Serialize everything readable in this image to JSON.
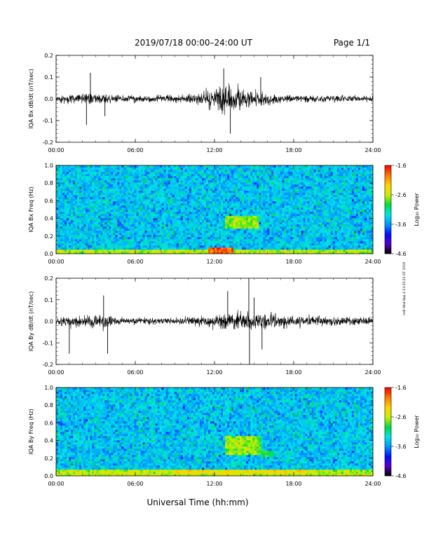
{
  "header": {
    "title": "2019/07/18  00:00–24:00 UT",
    "page": "Page 1/1"
  },
  "xaxis": {
    "label": "Universal Time (hh:mm)",
    "range_hours": [
      0,
      24
    ],
    "ticks": [
      {
        "h": 0,
        "label": "00:00"
      },
      {
        "h": 6,
        "label": "06:00"
      },
      {
        "h": 12,
        "label": "12:00"
      },
      {
        "h": 18,
        "label": "18:00"
      },
      {
        "h": 24,
        "label": "24:00"
      }
    ]
  },
  "side_note": "mdl fdsd 8pp 4 13:15:21 OT 2019",
  "colorscale": {
    "label": "Log₁₀ Power",
    "ticks": [
      "-1.6",
      "-2.6",
      "-3.6",
      "-4.6"
    ],
    "range": [
      -4.6,
      -1.6
    ],
    "colors": [
      "#000000",
      "#5a00c8",
      "#0010ff",
      "#0096ff",
      "#00e6e6",
      "#00dc3c",
      "#c8f000",
      "#ffd200",
      "#ff7800",
      "#ff0000"
    ]
  },
  "chart_data": [
    {
      "type": "line",
      "ylabel": "IQA Bx dB/dt (nT/sec)",
      "ylim": [
        -0.2,
        0.2
      ],
      "yticks": [
        "-0.2",
        "-0.1",
        "0.0",
        "0.1",
        "0.2"
      ],
      "ytick_values": [
        -0.2,
        -0.1,
        0.0,
        0.1,
        0.2
      ],
      "baseline": 0.0,
      "noise": 0.012,
      "envelope": [
        {
          "h": 0,
          "amp": 0.015
        },
        {
          "h": 2,
          "amp": 0.02
        },
        {
          "h": 2.5,
          "amp": 0.045
        },
        {
          "h": 3,
          "amp": 0.02
        },
        {
          "h": 6,
          "amp": 0.015
        },
        {
          "h": 9,
          "amp": 0.018
        },
        {
          "h": 11,
          "amp": 0.035
        },
        {
          "h": 12,
          "amp": 0.08
        },
        {
          "h": 13,
          "amp": 0.11
        },
        {
          "h": 14,
          "amp": 0.07
        },
        {
          "h": 15.5,
          "amp": 0.05
        },
        {
          "h": 17,
          "amp": 0.022
        },
        {
          "h": 20,
          "amp": 0.015
        },
        {
          "h": 24,
          "amp": 0.012
        }
      ],
      "spikes": [
        {
          "h": 2.3,
          "v": -0.12
        },
        {
          "h": 2.6,
          "v": 0.12
        },
        {
          "h": 3.7,
          "v": -0.08
        },
        {
          "h": 12.7,
          "v": 0.14
        },
        {
          "h": 13.2,
          "v": -0.16
        },
        {
          "h": 15.5,
          "v": 0.1
        }
      ]
    },
    {
      "type": "heatmap",
      "ylabel": "IQA Bx Freq (Hz)",
      "ylim": [
        0,
        1.0
      ],
      "yticks": [
        "0.0",
        "0.2",
        "0.4",
        "0.6",
        "0.8",
        "1.0"
      ],
      "ytick_values": [
        0,
        0.2,
        0.4,
        0.6,
        0.8,
        1.0
      ],
      "background_power": -3.4,
      "low_freq_band": {
        "fmax": 0.05,
        "power": -2.6
      },
      "features": [
        {
          "h0": 12.8,
          "h1": 15.3,
          "f0": 0.28,
          "f1": 0.42,
          "power": -2.7
        },
        {
          "h0": 11.5,
          "h1": 13.5,
          "f0": 0.0,
          "f1": 0.06,
          "power": -1.9
        }
      ]
    },
    {
      "type": "line",
      "ylabel": "IQA By dB/dt (nT/sec)",
      "ylim": [
        -0.2,
        0.2
      ],
      "yticks": [
        "-0.2",
        "-0.1",
        "0.0",
        "0.1",
        "0.2"
      ],
      "ytick_values": [
        -0.2,
        -0.1,
        0.0,
        0.1,
        0.2
      ],
      "baseline": 0.0,
      "noise": 0.012,
      "envelope": [
        {
          "h": 0,
          "amp": 0.018
        },
        {
          "h": 1.5,
          "amp": 0.035
        },
        {
          "h": 2.5,
          "amp": 0.04
        },
        {
          "h": 3.5,
          "amp": 0.05
        },
        {
          "h": 5,
          "amp": 0.015
        },
        {
          "h": 9,
          "amp": 0.016
        },
        {
          "h": 11,
          "amp": 0.03
        },
        {
          "h": 13,
          "amp": 0.055
        },
        {
          "h": 14.5,
          "amp": 0.065
        },
        {
          "h": 16,
          "amp": 0.05
        },
        {
          "h": 18,
          "amp": 0.03
        },
        {
          "h": 21,
          "amp": 0.025
        },
        {
          "h": 24,
          "amp": 0.02
        }
      ],
      "spikes": [
        {
          "h": 1.0,
          "v": -0.15
        },
        {
          "h": 3.6,
          "v": 0.12
        },
        {
          "h": 3.9,
          "v": -0.15
        },
        {
          "h": 13.0,
          "v": 0.14
        },
        {
          "h": 14.6,
          "v": 0.2
        },
        {
          "h": 14.65,
          "v": -0.2
        },
        {
          "h": 15.6,
          "v": -0.13
        },
        {
          "h": 15.0,
          "v": 0.11
        }
      ]
    },
    {
      "type": "heatmap",
      "ylabel": "IQA By Freq (Hz)",
      "ylim": [
        0,
        1.0
      ],
      "yticks": [
        "0.0",
        "0.2",
        "0.4",
        "0.6",
        "0.8",
        "1.0"
      ],
      "ytick_values": [
        0,
        0.2,
        0.4,
        0.6,
        0.8,
        1.0
      ],
      "background_power": -3.4,
      "low_freq_band": {
        "fmax": 0.08,
        "power": -2.6
      },
      "features": [
        {
          "h0": 12.8,
          "h1": 15.5,
          "f0": 0.25,
          "f1": 0.45,
          "power": -2.7
        },
        {
          "h0": 15.5,
          "h1": 16.5,
          "f0": 0.22,
          "f1": 0.28,
          "power": -2.9
        },
        {
          "h0": 9.0,
          "h1": 19.0,
          "f0": 0.02,
          "f1": 0.08,
          "power": -2.4
        }
      ]
    }
  ]
}
